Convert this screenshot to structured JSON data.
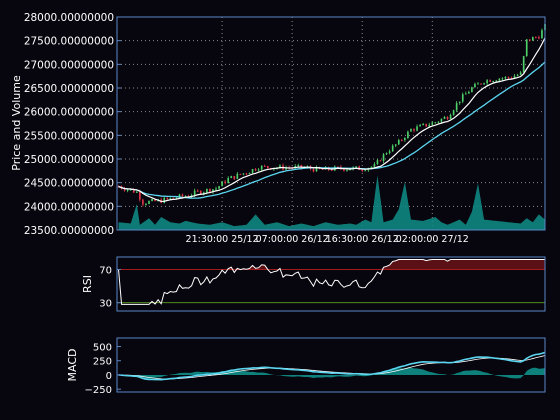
{
  "colors": {
    "background": "#07050d",
    "frame": "#5a86c8",
    "grid": "#8a8a8a",
    "up": "#4ed16a",
    "down": "#e0354a",
    "sma_fast": "#ffffff",
    "sma_slow": "#5ad6f0",
    "volume_fill": "#0f8f8a",
    "rsi_line": "#ffffff",
    "rsi_over": "#5a1015",
    "rsi_upper_line": "#b82020",
    "rsi_lower_line": "#5fa020",
    "macd_line": "#5ad6f0",
    "signal_line": "#ffffff",
    "hist_fill": "#0f8f8a",
    "text": "#ffffff"
  },
  "chart_data": [
    {
      "type": "candlestick",
      "ylabel": "Price and Volume",
      "ylim": [
        23500,
        28000
      ],
      "yticks": [
        {
          "value": 23500,
          "label": "23500.00000000"
        },
        {
          "value": 24000,
          "label": "24000.00000000"
        },
        {
          "value": 24500,
          "label": "24500.00000000"
        },
        {
          "value": 25000,
          "label": "25000.00000000"
        },
        {
          "value": 25500,
          "label": "25500.00000000"
        },
        {
          "value": 26000,
          "label": "26000.00000000"
        },
        {
          "value": 26500,
          "label": "26500.00000000"
        },
        {
          "value": 27000,
          "label": "27000.00000000"
        },
        {
          "value": 27500,
          "label": "27500.00000000"
        },
        {
          "value": 28000,
          "label": "28000.00000000"
        }
      ],
      "xlim": [
        0,
        140
      ],
      "xticks": [
        {
          "value": 34,
          "label": "21:30:00 25/12"
        },
        {
          "value": 57,
          "label": "07:00:00 26/12"
        },
        {
          "value": 80,
          "label": "16:30:00 26/12"
        },
        {
          "value": 103,
          "label": "02:00:00 27/12"
        }
      ],
      "grid": true,
      "anchors": [
        [
          0,
          24420
        ],
        [
          6,
          24300
        ],
        [
          8,
          24080
        ],
        [
          14,
          24120
        ],
        [
          18,
          24180
        ],
        [
          22,
          24220
        ],
        [
          26,
          24300
        ],
        [
          32,
          24380
        ],
        [
          36,
          24580
        ],
        [
          42,
          24720
        ],
        [
          46,
          24830
        ],
        [
          52,
          24820
        ],
        [
          60,
          24820
        ],
        [
          66,
          24770
        ],
        [
          72,
          24800
        ],
        [
          80,
          24800
        ],
        [
          84,
          24850
        ],
        [
          88,
          25150
        ],
        [
          92,
          25350
        ],
        [
          96,
          25620
        ],
        [
          100,
          25700
        ],
        [
          104,
          25780
        ],
        [
          108,
          25900
        ],
        [
          112,
          26250
        ],
        [
          116,
          26500
        ],
        [
          120,
          26650
        ],
        [
          124,
          26700
        ],
        [
          128,
          26720
        ],
        [
          132,
          26800
        ],
        [
          134,
          27500
        ],
        [
          138,
          27600
        ],
        [
          140,
          27800
        ]
      ],
      "volume_anchors": [
        [
          0,
          0.3
        ],
        [
          4,
          0.25
        ],
        [
          6,
          1.0
        ],
        [
          7,
          0.2
        ],
        [
          10,
          0.45
        ],
        [
          12,
          0.2
        ],
        [
          14,
          0.5
        ],
        [
          17,
          0.3
        ],
        [
          20,
          0.25
        ],
        [
          22,
          0.35
        ],
        [
          26,
          0.25
        ],
        [
          30,
          0.2
        ],
        [
          34,
          0.3
        ],
        [
          38,
          0.15
        ],
        [
          42,
          0.2
        ],
        [
          45,
          0.6
        ],
        [
          48,
          0.2
        ],
        [
          52,
          0.3
        ],
        [
          56,
          0.15
        ],
        [
          60,
          0.25
        ],
        [
          64,
          0.15
        ],
        [
          68,
          0.3
        ],
        [
          72,
          0.2
        ],
        [
          76,
          0.25
        ],
        [
          78,
          0.2
        ],
        [
          81,
          0.4
        ],
        [
          83,
          0.3
        ],
        [
          85,
          2.1
        ],
        [
          87,
          0.3
        ],
        [
          90,
          0.4
        ],
        [
          92,
          0.8
        ],
        [
          94,
          1.85
        ],
        [
          96,
          0.4
        ],
        [
          100,
          0.35
        ],
        [
          104,
          0.5
        ],
        [
          106,
          0.3
        ],
        [
          108,
          0.2
        ],
        [
          112,
          0.4
        ],
        [
          114,
          0.2
        ],
        [
          116,
          0.7
        ],
        [
          118,
          1.8
        ],
        [
          120,
          0.4
        ],
        [
          124,
          0.35
        ],
        [
          128,
          0.3
        ],
        [
          132,
          0.25
        ],
        [
          134,
          0.45
        ],
        [
          136,
          0.3
        ],
        [
          138,
          0.6
        ],
        [
          140,
          0.4
        ]
      ]
    },
    {
      "type": "line",
      "ylabel": "RSI",
      "ylim": [
        20,
        85
      ],
      "yticks": [
        {
          "value": 30,
          "label": "30"
        },
        {
          "value": 70,
          "label": "70"
        }
      ],
      "overbought": 70,
      "oversold": 30
    },
    {
      "type": "line",
      "ylabel": "MACD",
      "ylim": [
        -300,
        650
      ],
      "yticks": [
        {
          "value": -250,
          "label": "−250"
        },
        {
          "value": 0,
          "label": "0"
        },
        {
          "value": 250,
          "label": "250"
        },
        {
          "value": 500,
          "label": "500"
        }
      ]
    }
  ]
}
